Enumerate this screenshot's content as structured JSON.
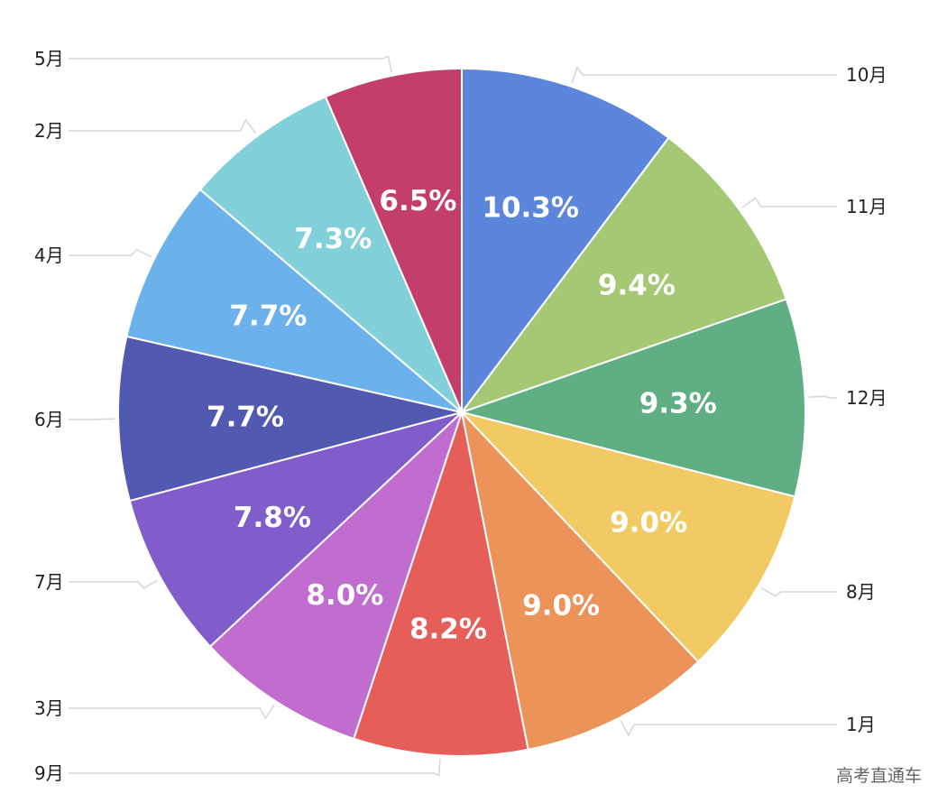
{
  "chart_data": {
    "type": "pie",
    "title": "",
    "slices": [
      {
        "label": "10月",
        "value": 10.3,
        "display": "10.3%",
        "color": "#5b86dc"
      },
      {
        "label": "11月",
        "value": 9.4,
        "display": "9.4%",
        "color": "#a5c874"
      },
      {
        "label": "12月",
        "value": 9.3,
        "display": "9.3%",
        "color": "#60ae83"
      },
      {
        "label": "8月",
        "value": 9.0,
        "display": "9.0%",
        "color": "#f2ca63"
      },
      {
        "label": "1月",
        "value": 9.0,
        "display": "9.0%",
        "color": "#eb9359"
      },
      {
        "label": "9月",
        "value": 8.2,
        "display": "8.2%",
        "color": "#e55e5a"
      },
      {
        "label": "3月",
        "value": 8.0,
        "display": "8.0%",
        "color": "#c06dcf"
      },
      {
        "label": "7月",
        "value": 7.8,
        "display": "7.8%",
        "color": "#815ccb"
      },
      {
        "label": "6月",
        "value": 7.7,
        "display": "7.7%",
        "color": "#5159b1"
      },
      {
        "label": "4月",
        "value": 7.7,
        "display": "7.7%",
        "color": "#6bb2ec"
      },
      {
        "label": "2月",
        "value": 7.3,
        "display": "7.3%",
        "color": "#82d0d9"
      },
      {
        "label": "5月",
        "value": 6.5,
        "display": "6.5%",
        "color": "#c43e6b"
      }
    ],
    "legend": "none",
    "label_style": "outside labels with leader lines"
  },
  "watermark": "高考直通车"
}
